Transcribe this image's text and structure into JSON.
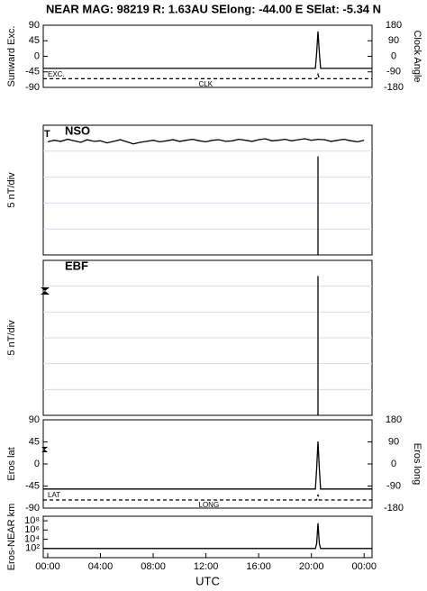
{
  "title": "NEAR MAG: 98219  R: 1.63AU  SElong:  -44.00 E  SElat:   -5.34 N",
  "chart_data": [
    {
      "type": "line",
      "ylabel": "Sunward Exc.",
      "y2label": "Clock Angle",
      "xlim": [
        -0.34,
        24.6
      ],
      "ylim": [
        -90,
        90
      ],
      "yticks": [
        90,
        45,
        0,
        -45,
        -90
      ],
      "y2lim": [
        -180,
        180
      ],
      "y2ticks": [
        180,
        90,
        0,
        -90,
        -180
      ],
      "series": [
        {
          "name": "EXC.",
          "color": "#000000",
          "x": [
            -0.34,
            20.3,
            20.4,
            20.5,
            20.6,
            20.7,
            24.6
          ],
          "values": [
            -35,
            -35,
            10,
            72,
            10,
            -35,
            -35
          ]
        },
        {
          "name": "CLK",
          "color": "#000000",
          "dashed": true,
          "axis": "y2",
          "x": [
            -0.34,
            20.3,
            20.4,
            20.5,
            20.6,
            20.7,
            24.6
          ],
          "values": [
            -130,
            -130,
            -130,
            -105,
            -130,
            -130,
            -130
          ]
        }
      ]
    },
    {
      "type": "line",
      "ylabel": "5 nT/div",
      "annotation": "NSO",
      "marker": "T",
      "xlim": [
        -0.34,
        24.6
      ],
      "ylim": [
        0,
        25
      ],
      "grid_lines": [
        5,
        10,
        15,
        20
      ],
      "series": [
        {
          "color": "#000000",
          "x": [
            0,
            0.5,
            1,
            1.5,
            2,
            2.5,
            3,
            3.5,
            4,
            4.5,
            5,
            5.5,
            6,
            6.5,
            7,
            7.5,
            8,
            8.5,
            9,
            9.5,
            10,
            10.5,
            11,
            11.5,
            12,
            12.5,
            13,
            13.5,
            14,
            14.5,
            15,
            15.5,
            16,
            16.5,
            17,
            17.5,
            18,
            18.5,
            19,
            19.5,
            20,
            20.5,
            21,
            21.5,
            22,
            22.5,
            23,
            23.5,
            24
          ],
          "values": [
            21.8,
            22.1,
            21.9,
            22.3,
            22.0,
            21.7,
            22.2,
            21.9,
            22.0,
            21.6,
            21.9,
            22.2,
            21.8,
            21.4,
            21.7,
            21.9,
            22.1,
            21.8,
            22.0,
            22.2,
            21.9,
            22.1,
            22.3,
            22.0,
            21.8,
            22.1,
            22.2,
            21.9,
            22.0,
            22.3,
            22.1,
            21.9,
            22.2,
            22.4,
            22.0,
            22.1,
            22.3,
            22.0,
            22.2,
            22.4,
            22.1,
            22.3,
            22.2,
            21.9,
            22.1,
            22.3,
            22.0,
            21.8,
            22.1
          ]
        },
        {
          "color": "#000000",
          "x": [
            20.5,
            20.5
          ],
          "values": [
            0,
            19
          ]
        }
      ]
    },
    {
      "type": "line",
      "ylabel": "5 nT/div",
      "annotation": "EBF",
      "xlim": [
        -0.34,
        24.6
      ],
      "ylim": [
        0,
        30
      ],
      "grid_lines": [
        5,
        10,
        15,
        20,
        25
      ],
      "series": [
        {
          "color": "#000000",
          "x": [
            20.5,
            20.5
          ],
          "values": [
            0,
            27
          ]
        }
      ]
    },
    {
      "type": "line",
      "ylabel": "Eros lat",
      "y2label": "Eros long",
      "xlim": [
        -0.34,
        24.6
      ],
      "ylim": [
        -90,
        90
      ],
      "yticks": [
        90,
        45,
        0,
        -45,
        -90
      ],
      "y2lim": [
        -180,
        180
      ],
      "y2ticks": [
        180,
        90,
        0,
        -90,
        -180
      ],
      "series": [
        {
          "name": "LAT",
          "color": "#000000",
          "x": [
            -0.34,
            20.3,
            20.4,
            20.5,
            20.6,
            20.7,
            24.6
          ],
          "values": [
            -51,
            -51,
            -10,
            46,
            -10,
            -51,
            -51
          ]
        },
        {
          "name": "LONG",
          "color": "#000000",
          "dashed": true,
          "axis": "y2",
          "x": [
            -0.34,
            20.3,
            20.4,
            20.5,
            20.6,
            20.7,
            24.6
          ],
          "values": [
            -147,
            -147,
            -147,
            -125,
            -147,
            -147,
            -147
          ]
        }
      ]
    },
    {
      "type": "line",
      "ylabel": "Eros-NEAR km",
      "log_y": true,
      "xlabel": "UTC",
      "xlim": [
        -0.34,
        24.6
      ],
      "ylim": [
        1,
        1000000000
      ],
      "yticks": [
        {
          "value": 100000000,
          "label": "10⁸"
        },
        {
          "value": 1000000,
          "label": "10⁶"
        },
        {
          "value": 10000,
          "label": "10⁴"
        },
        {
          "value": 100,
          "label": "10²"
        }
      ],
      "xticks": [
        {
          "value": 0,
          "label": "00:00"
        },
        {
          "value": 4,
          "label": "04:00"
        },
        {
          "value": 8,
          "label": "08:00"
        },
        {
          "value": 12,
          "label": "12:00"
        },
        {
          "value": 16,
          "label": "16:00"
        },
        {
          "value": 20,
          "label": "20:00"
        },
        {
          "value": 24,
          "label": "00:00"
        }
      ],
      "series": [
        {
          "color": "#000000",
          "x": [
            -0.34,
            20.3,
            20.4,
            20.5,
            20.6,
            20.7,
            24.6
          ],
          "values": [
            100,
            100,
            1000,
            30000000,
            1000,
            100,
            100
          ]
        }
      ]
    }
  ]
}
